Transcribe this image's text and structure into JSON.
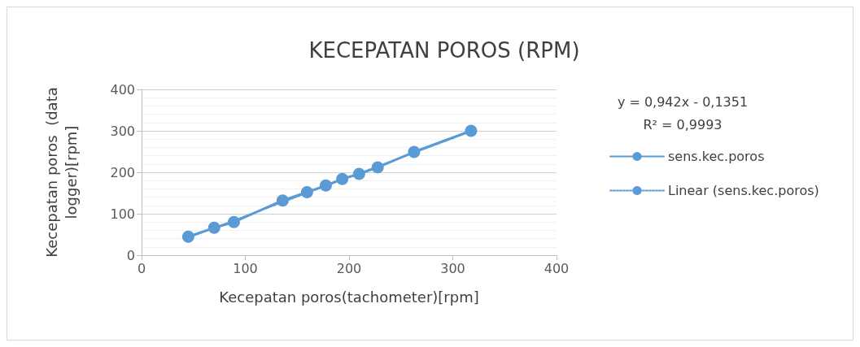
{
  "chart_data": {
    "type": "line",
    "title": "KECEPATAN POROS (RPM)",
    "xlabel": "Kecepatan poros(tachometer)[rpm]",
    "ylabel": "Kecepatan poros  (data\nlogger)[rpm]",
    "annotations": [
      "y = 0,942x - 0,1351",
      "R² = 0,9993"
    ],
    "xlim": [
      0,
      400
    ],
    "xticks": [
      0,
      100,
      200,
      300,
      400
    ],
    "ylim": [
      0,
      400
    ],
    "yticks": [
      0,
      100,
      200,
      300,
      400
    ],
    "grid": "y",
    "legend": "right",
    "series": [
      {
        "name": "sens.kec.poros",
        "color": "#5b9bd5",
        "marker": "circle",
        "line_style": "solid",
        "x": [
          45,
          70,
          89,
          136,
          159.5,
          177.6,
          193.5,
          209.7,
          227.6,
          262.7,
          317.6
        ],
        "values": [
          44.6,
          66,
          80,
          132,
          152,
          168,
          184,
          196,
          212,
          249,
          300
        ]
      },
      {
        "name": "Linear (sens.kec.poros)",
        "color": "#5b9bd5",
        "marker": "none",
        "line_style": "dotted",
        "x": [
          45,
          317.6
        ],
        "values": [
          42.3,
          299.0
        ]
      }
    ]
  }
}
